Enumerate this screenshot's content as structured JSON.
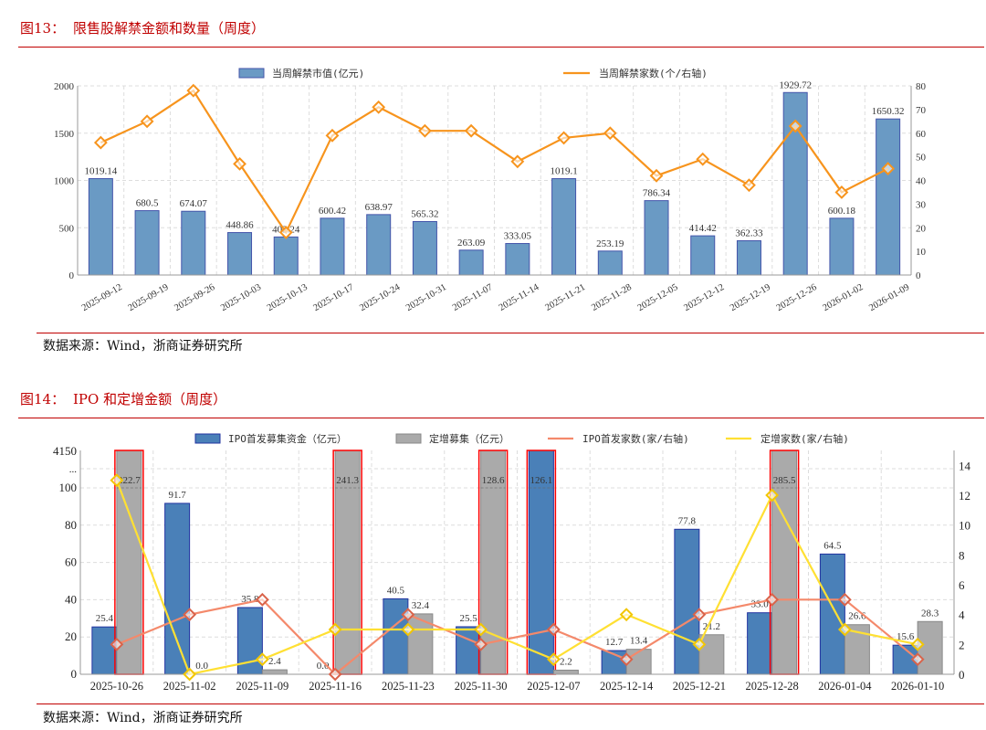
{
  "figure13": {
    "label": "图13：",
    "title": "限售股解禁金额和数量（周度）",
    "source": "数据来源：Wind，浙商证券研究所"
  },
  "figure14": {
    "label": "图14：",
    "title": "IPO 和定增金额（周度）",
    "source": "数据来源：Wind，浙商证券研究所"
  },
  "colors": {
    "accent": "#C00000",
    "bar13": "#6A9AC4",
    "line13": "#F7941D",
    "ipo_bar": "#4A80B8",
    "placement_bar": "#AAAAAA",
    "ipo_line": "#F4896B",
    "placement_line": "#FFE033",
    "highlight_box": "#FF0000"
  },
  "chart_data": [
    {
      "type": "bar+line",
      "categories": [
        "2025-09-12",
        "2025-09-19",
        "2025-09-26",
        "2025-10-03",
        "2025-10-13",
        "2025-10-17",
        "2025-10-24",
        "2025-10-31",
        "2025-11-07",
        "2025-11-14",
        "2025-11-21",
        "2025-11-28",
        "2025-12-05",
        "2025-12-12",
        "2025-12-19",
        "2025-12-26",
        "2026-01-02",
        "2026-01-09"
      ],
      "series": [
        {
          "name": "当周解禁市值(亿元)",
          "type": "bar",
          "axis": "left",
          "values": [
            1019.14,
            680.5,
            674.07,
            448.86,
            402.24,
            600.42,
            638.97,
            565.32,
            263.09,
            333.05,
            1019.1,
            253.19,
            786.34,
            414.42,
            362.33,
            1929.72,
            600.18,
            1650.32
          ],
          "labels": [
            "1019.14",
            "680.5",
            "674.07",
            "448.86",
            "402.24",
            "600.42",
            "638.97",
            "565.32",
            "263.09",
            "333.05",
            "1019.1",
            "253.19",
            "786.34",
            "414.42",
            "362.33",
            "1929.72",
            "600.18",
            "1650.32"
          ]
        },
        {
          "name": "当周解禁家数(个/右轴)",
          "type": "line",
          "axis": "right",
          "values": [
            56,
            65,
            78,
            47,
            18,
            59,
            71,
            61,
            61,
            48,
            58,
            60,
            42,
            49,
            38,
            63,
            35,
            45
          ]
        }
      ],
      "ylim_left": [
        0,
        2000
      ],
      "y_left_ticks": [
        0,
        500,
        1000,
        1500,
        2000
      ],
      "ylim_right": [
        0,
        80
      ],
      "y_right_ticks": [
        0,
        10,
        20,
        30,
        40,
        50,
        60,
        70,
        80
      ],
      "grid": true,
      "legend": "top"
    },
    {
      "type": "bar+line",
      "categories": [
        "2025-10-26",
        "2025-11-02",
        "2025-11-09",
        "2025-11-16",
        "2025-11-23",
        "2025-11-30",
        "2025-12-07",
        "2025-12-14",
        "2025-12-21",
        "2025-12-28",
        "2026-01-04",
        "2026-01-10"
      ],
      "series": [
        {
          "name": "IPO首发募集资金（亿元）",
          "type": "bar",
          "axis": "left",
          "values": [
            25.4,
            91.7,
            35.8,
            0.0,
            40.5,
            25.5,
            126.1,
            12.7,
            77.8,
            33.0,
            64.5,
            15.6
          ],
          "labels": [
            "25.4",
            "91.7",
            "35.8",
            "0.0",
            "40.5",
            "25.5",
            "126.1",
            "12.7",
            "77.8",
            "33.0",
            "64.5",
            "15.6"
          ]
        },
        {
          "name": "定增募集（亿元）",
          "type": "bar",
          "axis": "left",
          "values": [
            222.7,
            0.0,
            2.4,
            241.3,
            32.4,
            128.6,
            2.2,
            13.4,
            21.2,
            285.5,
            26.6,
            28.3
          ],
          "labels": [
            "222.7",
            "0.0",
            "2.4",
            "241.3",
            "32.4",
            "128.6",
            "2.2",
            "13.4",
            "21.2",
            "285.5",
            "26.6",
            "28.3"
          ]
        },
        {
          "name": "IPO首发家数(家/右轴)",
          "type": "line",
          "axis": "right",
          "values": [
            2,
            4,
            5,
            0,
            4,
            2,
            3,
            1,
            4,
            5,
            5,
            1
          ]
        },
        {
          "name": "定增家数(家/右轴)",
          "type": "line",
          "axis": "right",
          "values": [
            13,
            0,
            1,
            3,
            3,
            3,
            1,
            4,
            2,
            12,
            3,
            2
          ]
        }
      ],
      "ylim_left": [
        0,
        4150
      ],
      "y_left_ticks": [
        0,
        20,
        40,
        60,
        80,
        100
      ],
      "y_left_top_label": "4150",
      "axis_break_label": "...",
      "ylim_right": [
        0,
        15
      ],
      "y_right_ticks": [
        0,
        2,
        4,
        6,
        8,
        10,
        12,
        14
      ],
      "highlight": "bars above 100 outlined in red (axis break)",
      "grid": true,
      "legend": "top"
    }
  ]
}
